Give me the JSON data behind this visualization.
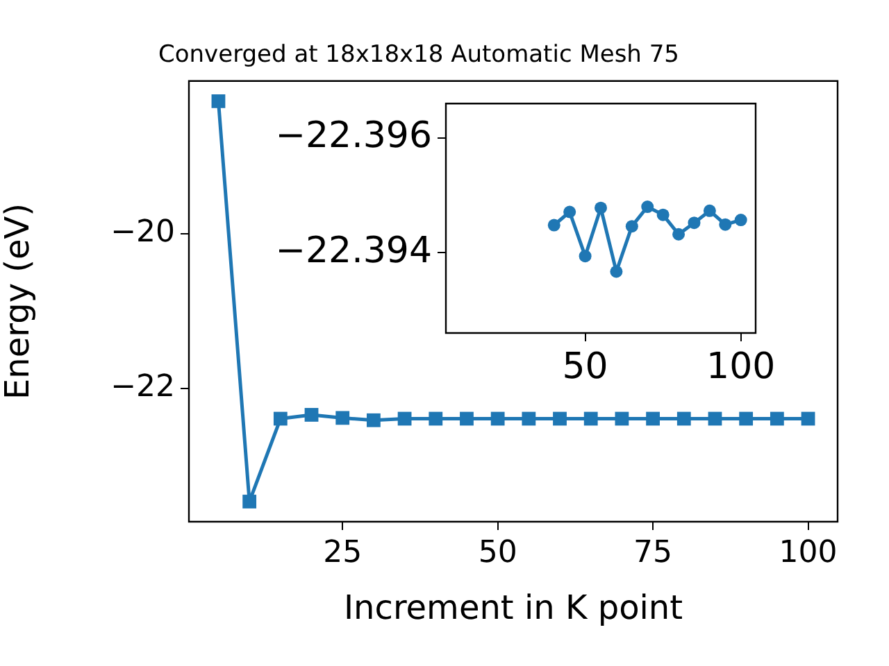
{
  "chart_data": [
    {
      "type": "line",
      "title": "Converged at 18x18x18 Automatic Mesh 75",
      "xlabel": "Increment in K point",
      "ylabel": "Energy (eV)",
      "x": [
        5,
        10,
        15,
        20,
        25,
        30,
        35,
        40,
        45,
        50,
        55,
        60,
        65,
        70,
        75,
        80,
        85,
        90,
        95,
        100
      ],
      "series": [
        {
          "color": "#1f77b4",
          "values": [
            -18.29,
            -23.46,
            -22.39,
            -22.34,
            -22.38,
            -22.41,
            -22.39,
            -22.39,
            -22.39,
            -22.39,
            -22.39,
            -22.39,
            -22.39,
            -22.39,
            -22.39,
            -22.39,
            -22.39,
            -22.39,
            -22.39,
            -22.39
          ]
        }
      ],
      "xlim": [
        0.25,
        104.75
      ],
      "ylim": [
        -23.72,
        -18.03
      ],
      "xticks": [
        25,
        50,
        75,
        100
      ],
      "yticks": [
        {
          "value": -22,
          "label": "−22"
        },
        {
          "value": -20,
          "label": "−20"
        }
      ],
      "marker": "square",
      "line_style": "solid",
      "legend": false,
      "grid": false
    },
    {
      "type": "line",
      "x": [
        40,
        45,
        50,
        55,
        60,
        65,
        70,
        75,
        80,
        85,
        90,
        95,
        100
      ],
      "series": [
        {
          "color": "#1f77b4",
          "values": [
            -22.39448,
            -22.39471,
            -22.39394,
            -22.39478,
            -22.39367,
            -22.39446,
            -22.3948,
            -22.39466,
            -22.39432,
            -22.39452,
            -22.39473,
            -22.39449,
            -22.39457
          ]
        }
      ],
      "xlim": [
        5.25,
        104.75
      ],
      "ylim": [
        -22.3926,
        -22.3966
      ],
      "xticks": [
        50,
        100
      ],
      "yticks": [
        {
          "value": -22.396,
          "label": "−22.396"
        },
        {
          "value": -22.394,
          "label": "−22.394"
        }
      ],
      "marker": "circle",
      "line_style": "solid",
      "legend": false,
      "grid": false
    }
  ]
}
